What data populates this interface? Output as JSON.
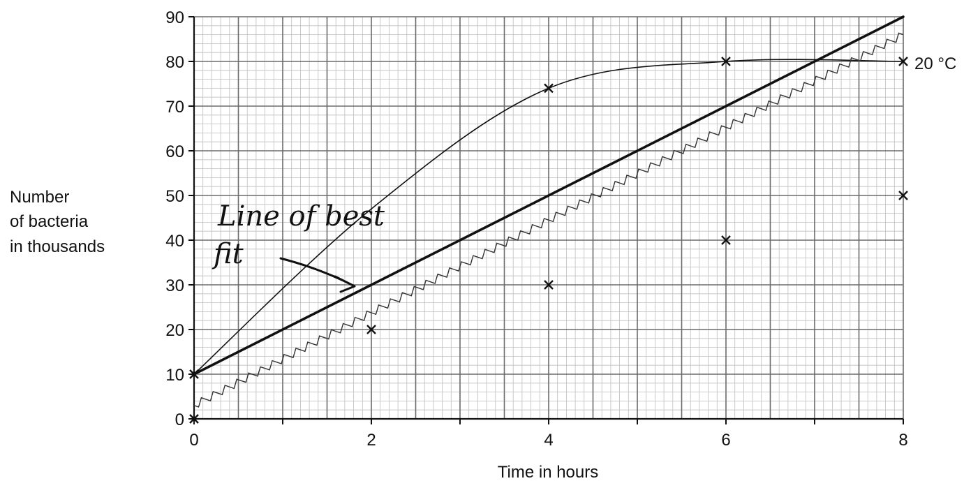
{
  "chart_data": {
    "type": "line",
    "xlabel": "Time in hours",
    "ylabel_lines": [
      "Number",
      "of bacteria",
      "in thousands"
    ],
    "xlim": [
      0,
      8
    ],
    "ylim": [
      0,
      90
    ],
    "x_ticks": [
      "0",
      "2",
      "4",
      "6",
      "8"
    ],
    "y_ticks": [
      "0",
      "10",
      "20",
      "30",
      "40",
      "50",
      "60",
      "70",
      "80",
      "90"
    ],
    "grid": true,
    "curve_label": "20 °C",
    "annotation_lines": [
      "Line of best",
      "fit"
    ],
    "series": [
      {
        "name": "20 °C",
        "style": "curve",
        "x": [
          0,
          2,
          4,
          6,
          8
        ],
        "y": [
          10,
          47,
          74,
          80,
          80
        ],
        "markers": [
          true,
          false,
          true,
          true,
          true
        ]
      },
      {
        "style": "points-only",
        "x": [
          0,
          2,
          4,
          6,
          8
        ],
        "y": [
          0,
          20,
          30,
          40,
          50
        ]
      },
      {
        "style": "bold-line",
        "x": [
          0,
          8
        ],
        "y": [
          10,
          90
        ]
      },
      {
        "style": "wavy-line",
        "x": [
          0,
          8
        ],
        "y": [
          3,
          86
        ]
      }
    ],
    "colors": {
      "ink": "#111111",
      "grid_major": "#6b6b6b",
      "grid_minor": "#bdbdbd"
    }
  }
}
